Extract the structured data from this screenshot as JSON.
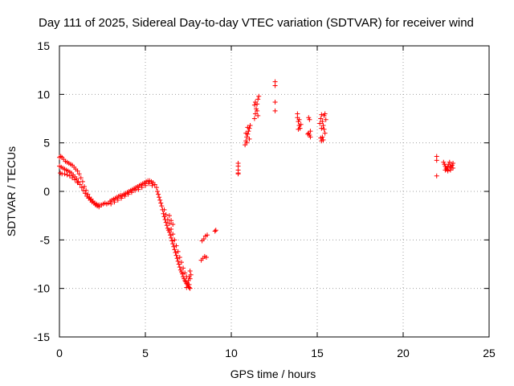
{
  "chart_data": {
    "type": "scatter",
    "title": "Day 111 of 2025, Sidereal Day-to-day VTEC variation (SDTVAR) for receiver wind",
    "xlabel": "GPS time / hours",
    "ylabel": "SDTVAR / TECUs",
    "xlim": [
      0,
      25
    ],
    "ylim": [
      -15,
      15
    ],
    "x_ticks": [
      0,
      5,
      10,
      15,
      20,
      25
    ],
    "y_ticks": [
      -15,
      -10,
      -5,
      0,
      5,
      10,
      15
    ],
    "x_tick_labels": [
      "0",
      "5",
      "10",
      "15",
      "20",
      "25"
    ],
    "y_tick_labels": [
      "-15",
      "-10",
      "-5",
      "0",
      "5",
      "10",
      "15"
    ],
    "grid": true,
    "marker": "+",
    "series": [
      {
        "name": "SDTVAR",
        "color": "#ff0000",
        "points": [
          [
            0.0,
            3.5
          ],
          [
            0.08,
            3.6
          ],
          [
            0.15,
            3.5
          ],
          [
            0.25,
            3.3
          ],
          [
            0.35,
            3.1
          ],
          [
            0.45,
            3.0
          ],
          [
            0.55,
            2.9
          ],
          [
            0.65,
            2.8
          ],
          [
            0.75,
            2.7
          ],
          [
            0.85,
            2.5
          ],
          [
            0.95,
            2.3
          ],
          [
            1.05,
            2.1
          ],
          [
            1.15,
            1.8
          ],
          [
            1.25,
            1.4
          ],
          [
            1.35,
            1.0
          ],
          [
            1.45,
            0.5
          ],
          [
            1.55,
            0.1
          ],
          [
            1.65,
            -0.3
          ],
          [
            1.75,
            -0.6
          ],
          [
            1.85,
            -0.8
          ],
          [
            1.95,
            -1.0
          ],
          [
            2.05,
            -1.2
          ],
          [
            2.15,
            -1.3
          ],
          [
            2.25,
            -1.4
          ],
          [
            2.35,
            -1.4
          ],
          [
            2.45,
            -1.4
          ],
          [
            2.55,
            -1.3
          ],
          [
            2.65,
            -1.2
          ],
          [
            2.75,
            -1.3
          ],
          [
            2.85,
            -1.2
          ],
          [
            0.0,
            2.6
          ],
          [
            0.1,
            2.5
          ],
          [
            0.2,
            2.4
          ],
          [
            0.3,
            2.3
          ],
          [
            0.4,
            2.2
          ],
          [
            0.5,
            2.1
          ],
          [
            0.6,
            2.0
          ],
          [
            0.7,
            1.9
          ],
          [
            0.8,
            1.7
          ],
          [
            0.9,
            1.5
          ],
          [
            1.0,
            1.3
          ],
          [
            1.1,
            1.0
          ],
          [
            1.2,
            0.7
          ],
          [
            1.3,
            0.4
          ],
          [
            1.4,
            0.1
          ],
          [
            1.5,
            -0.2
          ],
          [
            1.6,
            -0.5
          ],
          [
            1.7,
            -0.7
          ],
          [
            1.8,
            -0.9
          ],
          [
            1.9,
            -1.1
          ],
          [
            2.0,
            -1.2
          ],
          [
            2.1,
            -1.4
          ],
          [
            2.2,
            -1.5
          ],
          [
            2.3,
            -1.6
          ],
          [
            0.05,
            1.9
          ],
          [
            0.15,
            1.8
          ],
          [
            0.3,
            1.8
          ],
          [
            0.45,
            1.7
          ],
          [
            0.6,
            1.6
          ],
          [
            0.75,
            1.4
          ],
          [
            0.9,
            1.2
          ],
          [
            1.05,
            0.9
          ],
          [
            2.95,
            -1.0
          ],
          [
            3.05,
            -0.9
          ],
          [
            3.15,
            -0.8
          ],
          [
            3.25,
            -0.7
          ],
          [
            3.35,
            -0.6
          ],
          [
            3.45,
            -0.5
          ],
          [
            3.55,
            -0.4
          ],
          [
            3.65,
            -0.4
          ],
          [
            3.75,
            -0.3
          ],
          [
            3.85,
            -0.2
          ],
          [
            3.95,
            -0.1
          ],
          [
            4.05,
            0.0
          ],
          [
            4.15,
            0.1
          ],
          [
            4.25,
            0.2
          ],
          [
            4.35,
            0.3
          ],
          [
            4.45,
            0.4
          ],
          [
            4.55,
            0.5
          ],
          [
            4.65,
            0.6
          ],
          [
            4.75,
            0.7
          ],
          [
            4.85,
            0.8
          ],
          [
            4.95,
            0.9
          ],
          [
            5.05,
            1.0
          ],
          [
            5.15,
            1.1
          ],
          [
            5.25,
            1.1
          ],
          [
            5.35,
            1.0
          ],
          [
            5.45,
            0.9
          ],
          [
            5.55,
            0.7
          ],
          [
            5.65,
            0.4
          ],
          [
            3.0,
            -1.3
          ],
          [
            3.2,
            -1.1
          ],
          [
            3.4,
            -0.9
          ],
          [
            3.6,
            -0.7
          ],
          [
            3.8,
            -0.5
          ],
          [
            4.0,
            -0.3
          ],
          [
            4.2,
            -0.1
          ],
          [
            4.4,
            0.1
          ],
          [
            4.6,
            0.2
          ],
          [
            4.8,
            0.4
          ],
          [
            5.0,
            0.6
          ],
          [
            5.2,
            0.8
          ],
          [
            5.4,
            0.6
          ],
          [
            5.7,
            0.0
          ],
          [
            5.75,
            -0.3
          ],
          [
            5.8,
            -0.6
          ],
          [
            5.85,
            -0.9
          ],
          [
            5.9,
            -1.2
          ],
          [
            5.95,
            -1.5
          ],
          [
            6.0,
            -1.9
          ],
          [
            6.05,
            -2.3
          ],
          [
            6.1,
            -2.6
          ],
          [
            6.15,
            -2.9
          ],
          [
            6.2,
            -3.2
          ],
          [
            6.25,
            -3.5
          ],
          [
            6.3,
            -3.8
          ],
          [
            6.35,
            -4.0
          ],
          [
            6.4,
            -4.2
          ],
          [
            6.45,
            -4.5
          ],
          [
            6.5,
            -4.8
          ],
          [
            6.55,
            -5.1
          ],
          [
            6.6,
            -5.4
          ],
          [
            6.65,
            -5.7
          ],
          [
            6.7,
            -6.0
          ],
          [
            6.75,
            -6.3
          ],
          [
            6.8,
            -6.6
          ],
          [
            6.85,
            -6.9
          ],
          [
            6.9,
            -7.2
          ],
          [
            6.95,
            -7.5
          ],
          [
            7.0,
            -7.8
          ],
          [
            7.05,
            -8.1
          ],
          [
            7.1,
            -8.3
          ],
          [
            7.15,
            -8.5
          ],
          [
            7.2,
            -8.8
          ],
          [
            7.25,
            -9.0
          ],
          [
            7.3,
            -9.2
          ],
          [
            7.35,
            -9.3
          ],
          [
            7.4,
            -9.5
          ],
          [
            7.45,
            -9.6
          ],
          [
            7.5,
            -9.8
          ],
          [
            7.55,
            -9.9
          ],
          [
            7.6,
            -10.0
          ],
          [
            6.1,
            -1.9
          ],
          [
            6.2,
            -2.4
          ],
          [
            6.3,
            -2.9
          ],
          [
            6.4,
            -3.3
          ],
          [
            6.5,
            -3.9
          ],
          [
            6.6,
            -4.4
          ],
          [
            6.7,
            -5.0
          ],
          [
            6.8,
            -5.6
          ],
          [
            6.9,
            -6.2
          ],
          [
            7.0,
            -6.8
          ],
          [
            7.1,
            -7.3
          ],
          [
            7.2,
            -7.9
          ],
          [
            7.3,
            -8.4
          ],
          [
            7.4,
            -8.8
          ],
          [
            7.5,
            -9.2
          ],
          [
            7.6,
            -9.0
          ],
          [
            7.65,
            -8.6
          ],
          [
            7.6,
            -8.2
          ],
          [
            7.55,
            -8.8
          ],
          [
            6.4,
            -2.5
          ],
          [
            6.5,
            -3.0
          ],
          [
            6.6,
            -3.4
          ],
          [
            7.4,
            -9.9
          ],
          [
            7.55,
            -9.6
          ],
          [
            8.3,
            -5.1
          ],
          [
            8.4,
            -4.9
          ],
          [
            8.5,
            -4.6
          ],
          [
            8.6,
            -4.5
          ],
          [
            8.35,
            -6.9
          ],
          [
            8.45,
            -6.7
          ],
          [
            8.55,
            -6.8
          ],
          [
            8.25,
            -7.1
          ],
          [
            9.05,
            -4.1
          ],
          [
            9.1,
            -4.0
          ],
          [
            10.4,
            2.9
          ],
          [
            10.4,
            2.6
          ],
          [
            10.4,
            2.2
          ],
          [
            10.4,
            1.9
          ],
          [
            10.4,
            1.8
          ],
          [
            10.8,
            4.8
          ],
          [
            10.85,
            5.2
          ],
          [
            10.9,
            5.6
          ],
          [
            10.95,
            5.9
          ],
          [
            11.0,
            6.2
          ],
          [
            11.05,
            6.5
          ],
          [
            11.1,
            6.8
          ],
          [
            10.85,
            6.0
          ],
          [
            10.95,
            6.6
          ],
          [
            11.05,
            5.4
          ],
          [
            10.9,
            5.0
          ],
          [
            11.35,
            7.5
          ],
          [
            11.4,
            8.0
          ],
          [
            11.45,
            8.5
          ],
          [
            11.5,
            9.0
          ],
          [
            11.55,
            9.5
          ],
          [
            11.6,
            9.8
          ],
          [
            11.4,
            9.2
          ],
          [
            11.5,
            8.3
          ],
          [
            11.35,
            8.9
          ],
          [
            11.55,
            7.8
          ],
          [
            12.55,
            11.3
          ],
          [
            12.55,
            10.9
          ],
          [
            12.55,
            9.2
          ],
          [
            12.55,
            8.3
          ],
          [
            13.85,
            8.0
          ],
          [
            13.85,
            7.6
          ],
          [
            13.9,
            7.2
          ],
          [
            13.95,
            6.8
          ],
          [
            14.0,
            6.5
          ],
          [
            13.95,
            7.4
          ],
          [
            14.05,
            6.9
          ],
          [
            13.9,
            6.4
          ],
          [
            14.5,
            7.6
          ],
          [
            14.55,
            7.4
          ],
          [
            14.5,
            6.0
          ],
          [
            14.55,
            5.8
          ],
          [
            14.6,
            5.6
          ],
          [
            14.45,
            5.9
          ],
          [
            14.6,
            6.2
          ],
          [
            15.15,
            7.0
          ],
          [
            15.2,
            7.5
          ],
          [
            15.25,
            7.9
          ],
          [
            15.3,
            7.2
          ],
          [
            15.35,
            6.8
          ],
          [
            15.4,
            6.4
          ],
          [
            15.45,
            6.0
          ],
          [
            15.2,
            5.5
          ],
          [
            15.25,
            5.2
          ],
          [
            15.3,
            5.6
          ],
          [
            15.4,
            7.8
          ],
          [
            15.45,
            8.0
          ],
          [
            15.5,
            7.4
          ],
          [
            15.35,
            5.3
          ],
          [
            15.25,
            6.5
          ],
          [
            21.95,
            3.6
          ],
          [
            21.95,
            3.2
          ],
          [
            21.95,
            1.6
          ],
          [
            22.35,
            3.0
          ],
          [
            22.4,
            2.8
          ],
          [
            22.45,
            2.6
          ],
          [
            22.5,
            2.4
          ],
          [
            22.55,
            2.3
          ],
          [
            22.6,
            2.5
          ],
          [
            22.65,
            2.8
          ],
          [
            22.7,
            3.0
          ],
          [
            22.75,
            2.6
          ],
          [
            22.8,
            2.4
          ],
          [
            22.85,
            2.7
          ],
          [
            22.9,
            2.9
          ],
          [
            22.45,
            2.2
          ],
          [
            22.6,
            2.1
          ],
          [
            22.75,
            2.2
          ],
          [
            22.9,
            2.4
          ]
        ]
      }
    ]
  }
}
